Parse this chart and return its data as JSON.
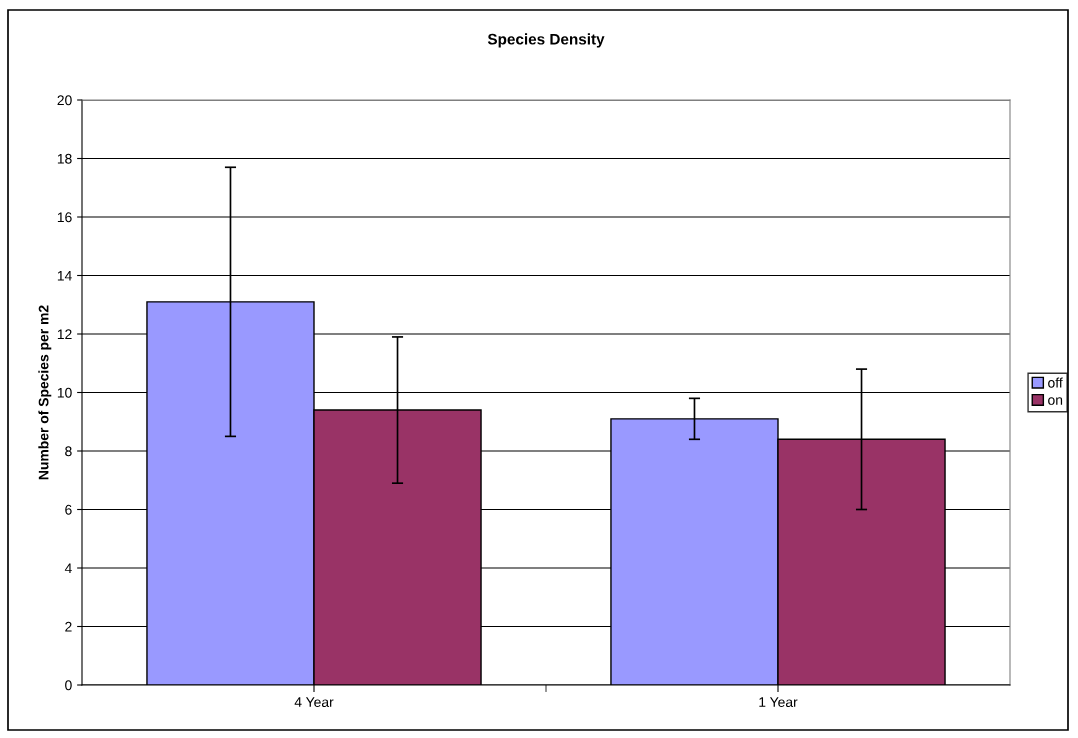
{
  "chart_data": {
    "type": "bar",
    "title": "Species Density",
    "ylabel": "Number of Species per m2",
    "categories": [
      "4 Year",
      "1 Year"
    ],
    "series": [
      {
        "name": "off",
        "color": "#9999ff",
        "values": [
          13.1,
          9.1
        ],
        "errors": [
          4.6,
          0.7
        ]
      },
      {
        "name": "on",
        "color": "#993366",
        "values": [
          9.4,
          8.4
        ],
        "errors": [
          2.5,
          2.4
        ]
      }
    ],
    "ylim": [
      0,
      20
    ],
    "yticks": [
      0,
      2,
      4,
      6,
      8,
      10,
      12,
      14,
      16,
      18,
      20
    ],
    "grid": "y",
    "legend": "right"
  }
}
